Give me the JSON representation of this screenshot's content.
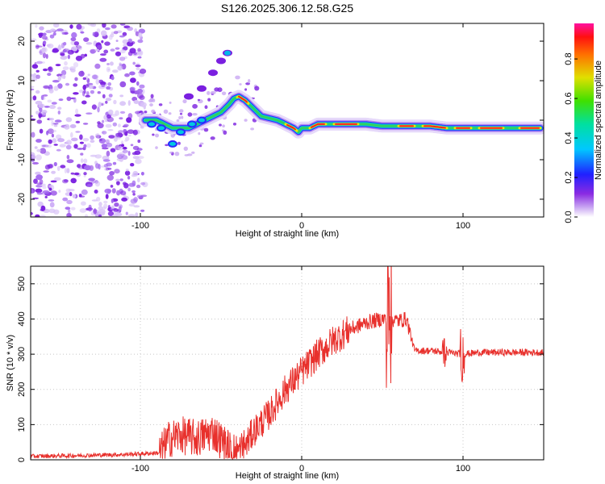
{
  "title": "S126.2025.306.12.58.G25",
  "chart_data": [
    {
      "type": "heatmap",
      "xlabel": "Height of straight line (km)",
      "ylabel": "Frequency (Hz)",
      "xlim": [
        -168,
        150
      ],
      "ylim": [
        -24.5,
        24.5
      ],
      "xticks": [
        -100,
        0,
        100
      ],
      "yticks": [
        -20,
        -10,
        0,
        10,
        20
      ],
      "ridge": {
        "x": [
          -97,
          -90,
          -85,
          -80,
          -75,
          -70,
          -65,
          -60,
          -55,
          -50,
          -45,
          -42,
          -39,
          -35,
          -30,
          -25,
          -20,
          -15,
          -10,
          -5,
          -2,
          0,
          5,
          10,
          20,
          30,
          40,
          50,
          60,
          70,
          80,
          90,
          100,
          110,
          120,
          130,
          140,
          148
        ],
        "y": [
          0,
          0,
          -1,
          -2,
          -2,
          -2,
          -1,
          0,
          1,
          2,
          4,
          5.5,
          6,
          5,
          3,
          1,
          0.5,
          0,
          -1,
          -2,
          -3,
          -2,
          -2,
          -1,
          -1,
          -1,
          -1,
          -1.5,
          -1.5,
          -1.5,
          -1.5,
          -2,
          -2,
          -2,
          -2,
          -2,
          -2,
          -2
        ]
      },
      "colorbar": {
        "label": "Normalized spectral amplitude",
        "ticks": [
          "0.0",
          "0.2",
          "0.4",
          "0.6",
          "0.8"
        ]
      }
    },
    {
      "type": "line",
      "xlabel": "Height of straight line (km)",
      "ylabel": "SNR (10 * v/v)",
      "xlim": [
        -168,
        150
      ],
      "ylim": [
        0,
        550
      ],
      "xticks": [
        -100,
        0,
        100
      ],
      "yticks": [
        0,
        100,
        200,
        300,
        400,
        500
      ],
      "color": "#e8302c",
      "trend": {
        "x": [
          -168,
          -140,
          -110,
          -95,
          -88,
          -82,
          -75,
          -65,
          -55,
          -45,
          -40,
          -35,
          -30,
          -20,
          -10,
          0,
          10,
          20,
          30,
          40,
          50,
          55,
          60,
          65,
          70,
          80,
          90,
          100,
          110,
          130,
          150
        ],
        "y": [
          10,
          12,
          15,
          18,
          20,
          60,
          70,
          60,
          80,
          30,
          20,
          40,
          80,
          130,
          200,
          250,
          300,
          340,
          370,
          390,
          400,
          400,
          395,
          400,
          310,
          310,
          305,
          300,
          305,
          305,
          305
        ]
      }
    }
  ]
}
